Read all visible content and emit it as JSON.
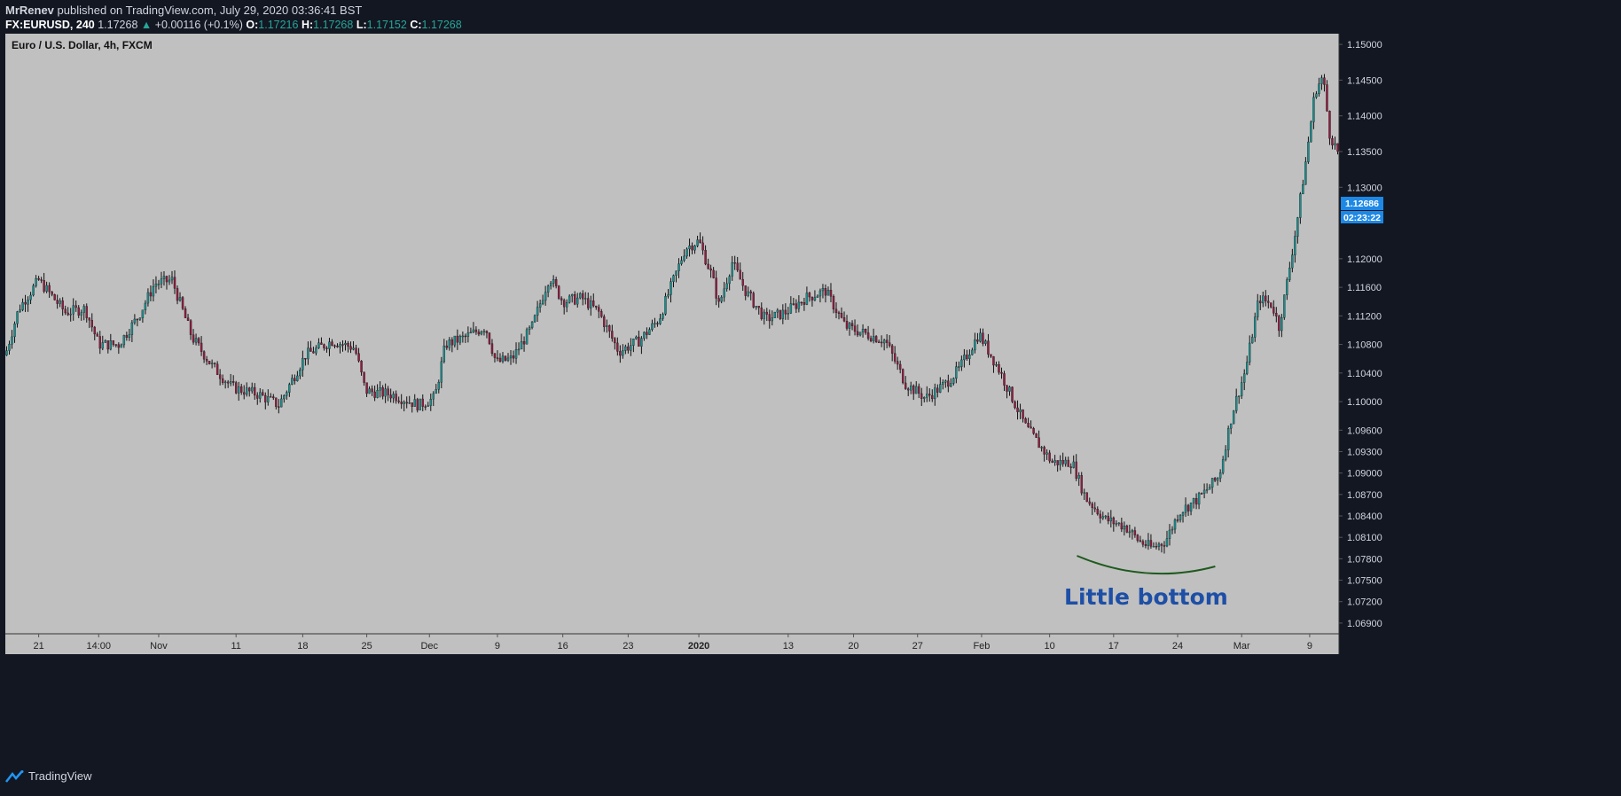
{
  "header": {
    "author": "MrRenev",
    "published": "published on TradingView.com, July 29, 2020 03:36:41 BST",
    "symbol": "FX:EURUSD, 240",
    "price": "1.17268",
    "change_arrow": "▲",
    "change": "+0.00116 (+0.1%)",
    "o_label": "O:",
    "o_value": "1.17216",
    "h_label": "H:",
    "h_value": "1.17268",
    "l_label": "L:",
    "l_value": "1.17152",
    "c_label": "C:",
    "c_value": "1.17268"
  },
  "footer": {
    "brand": "TradingView",
    "logo_icon": "tradingview-logo-icon"
  },
  "colors": {
    "page_bg": "#131722",
    "plot_bg": "#c0c0c0",
    "candle_up": "#1f8a8a",
    "candle_down": "#8b1e3f",
    "wick": "#111111",
    "price_badge": "#1e88e5",
    "annotation_curve": "#1e5a1e",
    "annotation_text": "#1e4fa6"
  },
  "chart_data": {
    "type": "candlestick",
    "title": "Euro / U.S. Dollar, 4h, FXCM",
    "ylim": [
      1.0675,
      1.1515
    ],
    "y_ticks": [
      "1.15000",
      "1.14500",
      "1.14000",
      "1.13500",
      "1.13000",
      "1.12000",
      "1.11600",
      "1.11200",
      "1.10800",
      "1.10400",
      "1.10000",
      "1.09600",
      "1.09300",
      "1.09000",
      "1.08700",
      "1.08400",
      "1.08100",
      "1.07800",
      "1.07500",
      "1.07200",
      "1.06900"
    ],
    "x_ticks": [
      {
        "label": "21",
        "pos": 0.025,
        "bold": false
      },
      {
        "label": "14:00",
        "pos": 0.07,
        "bold": false
      },
      {
        "label": "Nov",
        "pos": 0.115,
        "bold": false
      },
      {
        "label": "11",
        "pos": 0.173,
        "bold": false
      },
      {
        "label": "18",
        "pos": 0.223,
        "bold": false
      },
      {
        "label": "25",
        "pos": 0.271,
        "bold": false
      },
      {
        "label": "Dec",
        "pos": 0.318,
        "bold": false
      },
      {
        "label": "9",
        "pos": 0.369,
        "bold": false
      },
      {
        "label": "16",
        "pos": 0.418,
        "bold": false
      },
      {
        "label": "23",
        "pos": 0.467,
        "bold": false
      },
      {
        "label": "2020",
        "pos": 0.52,
        "bold": true
      },
      {
        "label": "13",
        "pos": 0.587,
        "bold": false
      },
      {
        "label": "20",
        "pos": 0.636,
        "bold": false
      },
      {
        "label": "27",
        "pos": 0.684,
        "bold": false
      },
      {
        "label": "Feb",
        "pos": 0.732,
        "bold": false
      },
      {
        "label": "10",
        "pos": 0.783,
        "bold": false
      },
      {
        "label": "17",
        "pos": 0.831,
        "bold": false
      },
      {
        "label": "24",
        "pos": 0.879,
        "bold": false
      },
      {
        "label": "Mar",
        "pos": 0.927,
        "bold": false
      },
      {
        "label": "9",
        "pos": 0.978,
        "bold": false
      }
    ],
    "price_path": [
      [
        0.0,
        1.1065
      ],
      [
        0.01,
        1.113
      ],
      [
        0.025,
        1.117
      ],
      [
        0.045,
        1.1125
      ],
      [
        0.06,
        1.113
      ],
      [
        0.07,
        1.108
      ],
      [
        0.085,
        1.108
      ],
      [
        0.1,
        1.112
      ],
      [
        0.112,
        1.1165
      ],
      [
        0.125,
        1.117
      ],
      [
        0.14,
        1.109
      ],
      [
        0.155,
        1.105
      ],
      [
        0.17,
        1.102
      ],
      [
        0.19,
        1.101
      ],
      [
        0.205,
        1.0995
      ],
      [
        0.225,
        1.1065
      ],
      [
        0.245,
        1.1085
      ],
      [
        0.262,
        1.1075
      ],
      [
        0.27,
        1.1015
      ],
      [
        0.29,
        1.101
      ],
      [
        0.31,
        1.0995
      ],
      [
        0.322,
        1.1005
      ],
      [
        0.33,
        1.108
      ],
      [
        0.345,
        1.109
      ],
      [
        0.36,
        1.1105
      ],
      [
        0.368,
        1.1055
      ],
      [
        0.38,
        1.106
      ],
      [
        0.395,
        1.1105
      ],
      [
        0.408,
        1.1175
      ],
      [
        0.418,
        1.114
      ],
      [
        0.432,
        1.1145
      ],
      [
        0.445,
        1.1125
      ],
      [
        0.46,
        1.107
      ],
      [
        0.475,
        1.1085
      ],
      [
        0.49,
        1.1115
      ],
      [
        0.51,
        1.1215
      ],
      [
        0.52,
        1.1225
      ],
      [
        0.53,
        1.1175
      ],
      [
        0.535,
        1.1135
      ],
      [
        0.545,
        1.1195
      ],
      [
        0.555,
        1.1155
      ],
      [
        0.57,
        1.1115
      ],
      [
        0.585,
        1.1125
      ],
      [
        0.6,
        1.1145
      ],
      [
        0.615,
        1.1155
      ],
      [
        0.63,
        1.1105
      ],
      [
        0.645,
        1.1095
      ],
      [
        0.66,
        1.1085
      ],
      [
        0.675,
        1.1025
      ],
      [
        0.69,
        1.1005
      ],
      [
        0.705,
        1.1025
      ],
      [
        0.715,
        1.1045
      ],
      [
        0.73,
        1.1095
      ],
      [
        0.745,
        1.1045
      ],
      [
        0.765,
        1.0965
      ],
      [
        0.785,
        1.0915
      ],
      [
        0.8,
        1.0915
      ],
      [
        0.81,
        1.0865
      ],
      [
        0.825,
        1.0835
      ],
      [
        0.84,
        1.0825
      ],
      [
        0.85,
        1.0805
      ],
      [
        0.86,
        1.0795
      ],
      [
        0.87,
        1.0805
      ],
      [
        0.88,
        1.0845
      ],
      [
        0.895,
        1.0865
      ],
      [
        0.91,
        1.0895
      ],
      [
        0.92,
        1.0985
      ],
      [
        0.93,
        1.1045
      ],
      [
        0.94,
        1.1145
      ],
      [
        0.95,
        1.1135
      ],
      [
        0.955,
        1.1105
      ],
      [
        0.96,
        1.1155
      ],
      [
        0.968,
        1.1245
      ],
      [
        0.975,
        1.1335
      ],
      [
        0.982,
        1.1435
      ],
      [
        0.988,
        1.1455
      ],
      [
        0.993,
        1.1375
      ],
      [
        1.0,
        1.1345
      ]
    ],
    "annotation": {
      "text": "Little bottom"
    },
    "last_price": "1.12686",
    "countdown": "02:23:22"
  }
}
